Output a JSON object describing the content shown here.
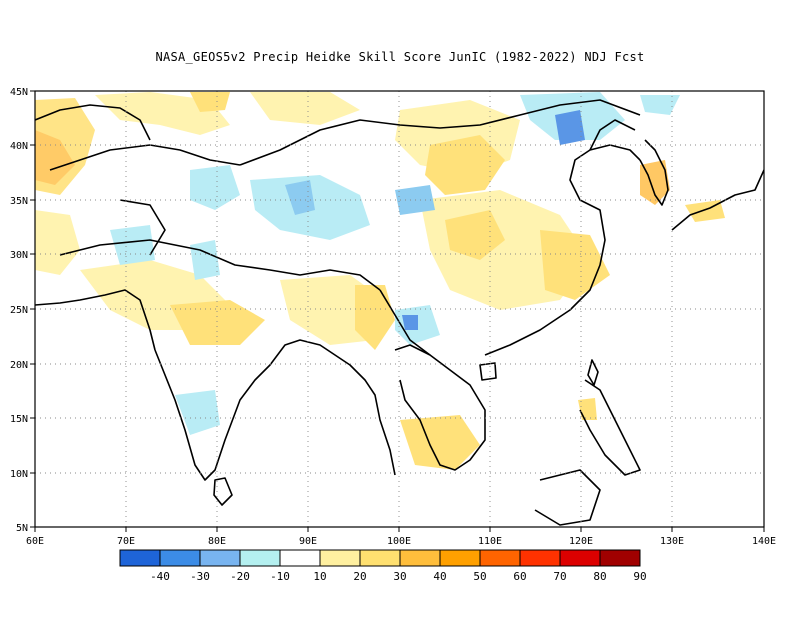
{
  "title": "NASA_GEOS5v2 Precip Heidke Skill Score JunIC (1982-2022) NDJ Fcst",
  "map": {
    "lon_labels": [
      "60E",
      "70E",
      "80E",
      "90E",
      "100E",
      "110E",
      "120E",
      "130E",
      "140E"
    ],
    "lat_labels": [
      "45N",
      "40N",
      "35N",
      "30N",
      "25N",
      "20N",
      "15N",
      "10N",
      "5N"
    ],
    "lon_range": [
      60,
      140
    ],
    "lat_range": [
      5,
      45
    ],
    "gridlines": "dotted"
  },
  "colorbar": {
    "labels": [
      "-40",
      "-30",
      "-20",
      "-10",
      "10",
      "20",
      "30",
      "40",
      "50",
      "60",
      "70",
      "80",
      "90"
    ],
    "colors": [
      "#1e64d8",
      "#3c8ce6",
      "#78b4f0",
      "#b4f0f0",
      "#ffffff",
      "#fff0a0",
      "#ffe070",
      "#ffbe3c",
      "#ffa000",
      "#ff6400",
      "#ff3200",
      "#dc0000",
      "#a00000"
    ]
  },
  "field_colors": {
    "blue_dark": "#5a96e6",
    "blue_mid": "#8ccbf0",
    "cyan_light": "#b9ecf5",
    "yellow_light": "#fff3b0",
    "yellow_mid": "#ffe17a",
    "orange_light": "#ffc864"
  }
}
